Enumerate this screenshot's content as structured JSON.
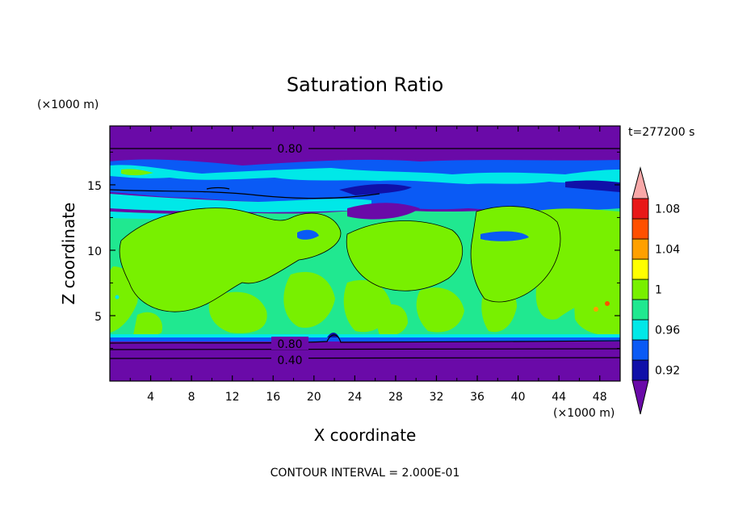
{
  "chart_data": {
    "type": "heatmap",
    "title": "Saturation Ratio",
    "xlabel": "X coordinate",
    "ylabel": "Z coordinate",
    "x_unit": "(×1000 m)",
    "y_unit": "(×1000 m)",
    "time_label": "t=277200 s",
    "footer": "CONTOUR INTERVAL = 2.000E-01",
    "xlim": [
      0,
      50
    ],
    "ylim": [
      0,
      19.5
    ],
    "x_ticks": [
      4,
      8,
      12,
      16,
      20,
      24,
      28,
      32,
      36,
      40,
      44,
      48
    ],
    "y_ticks": [
      5,
      10,
      15
    ],
    "contour_labels": [
      {
        "text": "0.80",
        "x": 17.5,
        "z": 18.0
      },
      {
        "text": "0.80",
        "x": 19.0,
        "z": 2.8
      },
      {
        "text": "0.40",
        "x": 17.5,
        "z": 1.7
      }
    ],
    "colorbar": {
      "levels": [
        0.92,
        0.96,
        1,
        1.04,
        1.08
      ],
      "level_labels": [
        "0.92",
        "0.96",
        "1",
        "1.04",
        "1.08"
      ],
      "colors": [
        "#6a0aa8",
        "#1010a8",
        "#0a5af5",
        "#00e8e8",
        "#20e890",
        "#78f000",
        "#ffff00",
        "#ffa000",
        "#ff5000",
        "#e81818",
        "#f8a8a8"
      ]
    }
  }
}
